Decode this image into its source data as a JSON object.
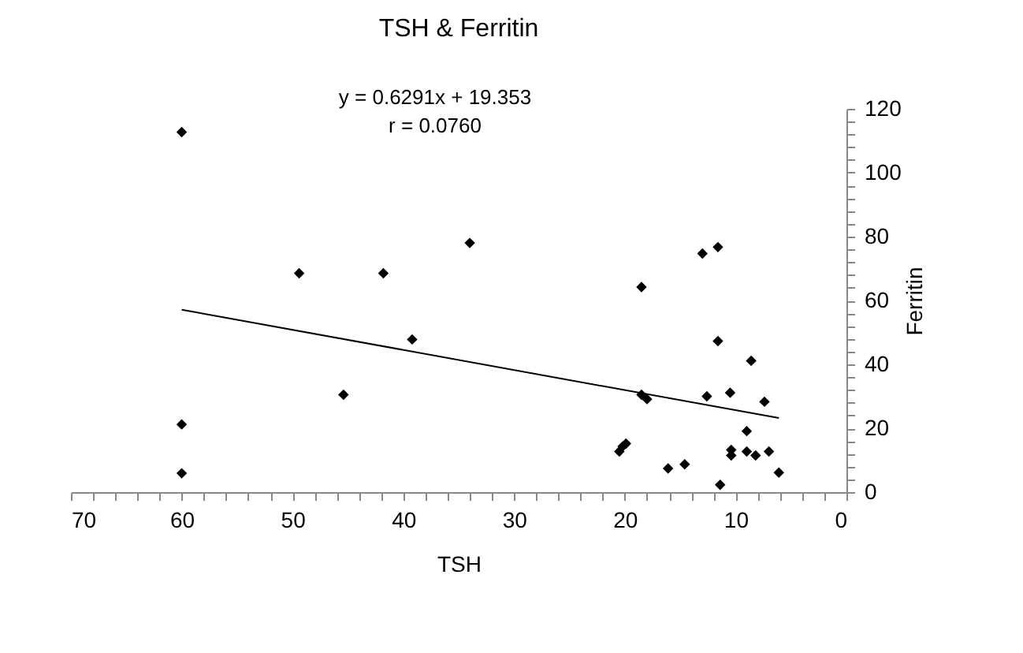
{
  "chart_data": {
    "type": "scatter",
    "title": "TSH & Ferritin",
    "xlabel": "TSH",
    "ylabel": "Ferritin",
    "annotations": [
      "y = 0.6291x  +  19.353",
      "r = 0.0760"
    ],
    "xlim": [
      70,
      0
    ],
    "xticks": [
      0,
      {
        "value": 2,
        "label": null
      },
      {
        "value": 4,
        "label": null
      },
      {
        "value": 6,
        "label": null
      },
      {
        "value": 8,
        "label": null
      },
      10,
      {
        "value": 12,
        "label": null
      },
      {
        "value": 14,
        "label": null
      },
      {
        "value": 16,
        "label": null
      },
      {
        "value": 18,
        "label": null
      },
      20,
      {
        "value": 22,
        "label": null
      },
      {
        "value": 24,
        "label": null
      },
      {
        "value": 26,
        "label": null
      },
      {
        "value": 28,
        "label": null
      },
      30,
      {
        "value": 32,
        "label": null
      },
      {
        "value": 34,
        "label": null
      },
      {
        "value": 36,
        "label": null
      },
      {
        "value": 38,
        "label": null
      },
      40,
      {
        "value": 42,
        "label": null
      },
      {
        "value": 44,
        "label": null
      },
      {
        "value": 46,
        "label": null
      },
      {
        "value": 48,
        "label": null
      },
      50,
      {
        "value": 52,
        "label": null
      },
      {
        "value": 54,
        "label": null
      },
      {
        "value": 56,
        "label": null
      },
      {
        "value": 58,
        "label": null
      },
      60,
      {
        "value": 62,
        "label": null
      },
      {
        "value": 64,
        "label": null
      },
      {
        "value": 66,
        "label": null
      },
      {
        "value": 68,
        "label": null
      },
      70
    ],
    "ylim": [
      0,
      120
    ],
    "yticks": [
      0,
      {
        "value": 4,
        "label": null
      },
      {
        "value": 8,
        "label": null
      },
      {
        "value": 12,
        "label": null
      },
      {
        "value": 16,
        "label": null
      },
      20,
      {
        "value": 24,
        "label": null
      },
      {
        "value": 28,
        "label": null
      },
      {
        "value": 32,
        "label": null
      },
      {
        "value": 36,
        "label": null
      },
      40,
      {
        "value": 44,
        "label": null
      },
      {
        "value": 48,
        "label": null
      },
      {
        "value": 52,
        "label": null
      },
      {
        "value": 56,
        "label": null
      },
      60,
      {
        "value": 64,
        "label": null
      },
      {
        "value": 68,
        "label": null
      },
      {
        "value": 72,
        "label": null
      },
      {
        "value": 76,
        "label": null
      },
      80,
      {
        "value": 84,
        "label": null
      },
      {
        "value": 88,
        "label": null
      },
      {
        "value": 92,
        "label": null
      },
      {
        "value": 96,
        "label": null
      },
      100,
      {
        "value": 104,
        "label": null
      },
      {
        "value": 108,
        "label": null
      },
      {
        "value": 112,
        "label": null
      },
      {
        "value": 116,
        "label": null
      },
      120
    ],
    "grid": false,
    "legend": false,
    "series": [
      {
        "type": "scatter",
        "color": "#000000",
        "marker": "diamond",
        "x": [
          60,
          60,
          60,
          49.4,
          45.4,
          41.8,
          39.2,
          34.0,
          18.5,
          13.0,
          11.6,
          11.6,
          8.6,
          18.5,
          18.0,
          12.6,
          10.5,
          7.4,
          9.0,
          20.5,
          20.2,
          19.9,
          16.1,
          14.6,
          11.4,
          10.4,
          10.4,
          9.0,
          8.2,
          7.0,
          6.1
        ],
        "values": [
          112.7,
          21.2,
          5.9,
          68.5,
          30.5,
          68.5,
          47.8,
          78,
          64.2,
          74.7,
          76.7,
          47.3,
          41.1,
          30.5,
          29.1,
          30.0,
          31.1,
          28.3,
          19.1,
          12.7,
          14.3,
          15.2,
          7.4,
          8.7,
          2.3,
          13.2,
          11.5,
          12.7,
          11.5,
          12.7,
          6.1
        ]
      },
      {
        "type": "line",
        "color": "#000000",
        "line_style": "solid",
        "marker": "none",
        "x": [
          60,
          6.1
        ],
        "values": [
          57.1,
          23.2
        ]
      }
    ]
  }
}
